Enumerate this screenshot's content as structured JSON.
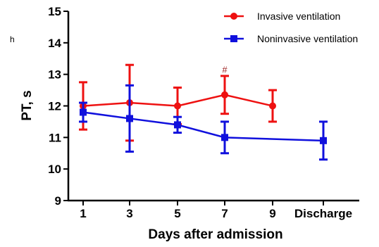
{
  "chart_data": {
    "type": "line",
    "xlabel": "Days after admission",
    "ylabel": "PT, s",
    "ylim": [
      9,
      15
    ],
    "yticks": [
      "9",
      "10",
      "11",
      "12",
      "13",
      "14",
      "15"
    ],
    "categories": [
      "1",
      "3",
      "5",
      "7",
      "9",
      "Discharge"
    ],
    "legend_position": "top-right",
    "series": [
      {
        "name": "Invasive ventilation",
        "color": "#ee1111",
        "marker": "circle",
        "points": [
          {
            "x": "1",
            "y": 12.0,
            "err": 0.75
          },
          {
            "x": "3",
            "y": 12.1,
            "err": 1.2
          },
          {
            "x": "5",
            "y": 12.0,
            "err": 0.58
          },
          {
            "x": "7",
            "y": 12.35,
            "err": 0.6
          },
          {
            "x": "9",
            "y": 12.0,
            "err": 0.5
          }
        ]
      },
      {
        "name": "Noninvasive ventilation",
        "color": "#1010dd",
        "marker": "square",
        "points": [
          {
            "x": "1",
            "y": 11.8,
            "err": 0.3
          },
          {
            "x": "3",
            "y": 11.6,
            "err": 1.05
          },
          {
            "x": "5",
            "y": 11.4,
            "err": 0.25
          },
          {
            "x": "7",
            "y": 11.0,
            "err": 0.5
          },
          {
            "x": "Discharge",
            "y": 10.9,
            "err": 0.6
          }
        ]
      }
    ],
    "annotations": [
      {
        "text": "#",
        "x": "7",
        "y": 13.05,
        "color": "#9b1c1c"
      }
    ]
  },
  "page": {
    "margin_fragment": "h"
  }
}
